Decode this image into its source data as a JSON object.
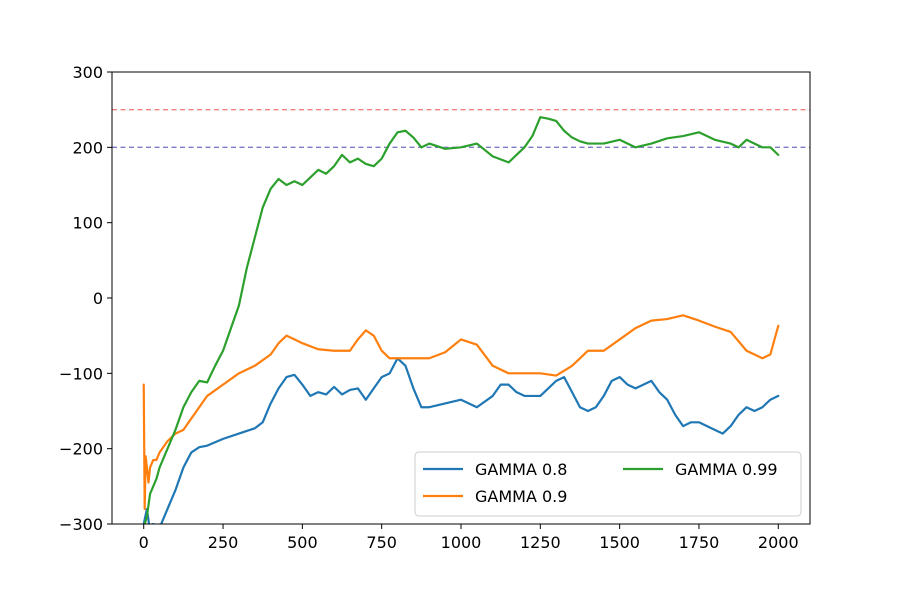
{
  "chart_data": {
    "type": "line",
    "title": "",
    "xlabel": "",
    "ylabel": "",
    "xlim": [
      -100,
      2100
    ],
    "ylim": [
      -300,
      300
    ],
    "xticks": [
      0,
      250,
      500,
      750,
      1000,
      1250,
      1500,
      1750,
      2000
    ],
    "xtick_labels": [
      "0",
      "250",
      "500",
      "750",
      "1000",
      "1250",
      "1500",
      "1750",
      "2000"
    ],
    "yticks": [
      -300,
      -200,
      -100,
      0,
      100,
      200,
      300
    ],
    "ytick_labels": [
      "−300",
      "−200",
      "−100",
      "0",
      "100",
      "200",
      "300"
    ],
    "grid": false,
    "legend_position": "lower-right",
    "legend_columns": 2,
    "hlines": [
      {
        "y": 250,
        "color": "#f08080",
        "style": "dashed"
      },
      {
        "y": 200,
        "color": "#7b7bc7",
        "style": "dashed"
      }
    ],
    "series": [
      {
        "name": "GAMMA 0.8",
        "color": "#1f77b4",
        "x": [
          0,
          10,
          20,
          30,
          40,
          50,
          75,
          100,
          125,
          150,
          175,
          200,
          250,
          300,
          350,
          375,
          400,
          425,
          450,
          475,
          500,
          525,
          550,
          575,
          600,
          625,
          650,
          675,
          700,
          725,
          750,
          775,
          800,
          825,
          850,
          875,
          900,
          950,
          1000,
          1050,
          1100,
          1125,
          1150,
          1175,
          1200,
          1250,
          1300,
          1325,
          1350,
          1375,
          1400,
          1425,
          1450,
          1475,
          1500,
          1525,
          1550,
          1575,
          1600,
          1625,
          1650,
          1675,
          1700,
          1725,
          1750,
          1800,
          1825,
          1850,
          1875,
          1900,
          1925,
          1950,
          1975,
          2000
        ],
        "y": [
          -300,
          -280,
          -310,
          -300,
          -310,
          -305,
          -280,
          -255,
          -225,
          -205,
          -198,
          -196,
          -187,
          -180,
          -173,
          -165,
          -140,
          -120,
          -105,
          -102,
          -115,
          -130,
          -125,
          -128,
          -118,
          -128,
          -122,
          -120,
          -135,
          -120,
          -105,
          -100,
          -80,
          -90,
          -120,
          -145,
          -145,
          -140,
          -135,
          -145,
          -130,
          -115,
          -115,
          -125,
          -130,
          -130,
          -110,
          -105,
          -125,
          -145,
          -150,
          -145,
          -130,
          -110,
          -105,
          -115,
          -120,
          -115,
          -110,
          -125,
          -135,
          -155,
          -170,
          -165,
          -165,
          -175,
          -180,
          -170,
          -155,
          -145,
          -150,
          -145,
          -135,
          -130
        ]
      },
      {
        "name": "GAMMA 0.9",
        "color": "#ff7f0e",
        "x": [
          0,
          3,
          6,
          10,
          15,
          20,
          30,
          40,
          50,
          75,
          100,
          125,
          150,
          175,
          200,
          250,
          300,
          350,
          400,
          425,
          450,
          475,
          500,
          550,
          600,
          650,
          675,
          700,
          725,
          750,
          775,
          800,
          850,
          900,
          950,
          1000,
          1050,
          1100,
          1150,
          1200,
          1250,
          1300,
          1350,
          1375,
          1400,
          1450,
          1500,
          1550,
          1600,
          1650,
          1700,
          1750,
          1800,
          1850,
          1900,
          1925,
          1950,
          1975,
          2000
        ],
        "y": [
          -115,
          -280,
          -210,
          -225,
          -245,
          -225,
          -215,
          -215,
          -205,
          -190,
          -180,
          -175,
          -160,
          -145,
          -130,
          -115,
          -100,
          -90,
          -75,
          -60,
          -50,
          -55,
          -60,
          -68,
          -70,
          -70,
          -55,
          -43,
          -50,
          -70,
          -80,
          -80,
          -80,
          -80,
          -72,
          -55,
          -62,
          -90,
          -100,
          -100,
          -100,
          -103,
          -90,
          -80,
          -70,
          -70,
          -55,
          -40,
          -30,
          -28,
          -23,
          -30,
          -38,
          -45,
          -70,
          -75,
          -80,
          -75,
          -37
        ]
      },
      {
        "name": "GAMMA 0.99",
        "color": "#2ca02c",
        "x": [
          0,
          10,
          20,
          30,
          40,
          50,
          75,
          100,
          125,
          150,
          175,
          200,
          225,
          250,
          275,
          300,
          325,
          350,
          375,
          400,
          425,
          450,
          475,
          500,
          525,
          550,
          575,
          600,
          625,
          650,
          675,
          700,
          725,
          750,
          775,
          800,
          825,
          850,
          875,
          900,
          950,
          1000,
          1050,
          1100,
          1150,
          1200,
          1225,
          1250,
          1275,
          1300,
          1325,
          1350,
          1375,
          1400,
          1450,
          1500,
          1550,
          1600,
          1650,
          1700,
          1750,
          1800,
          1850,
          1875,
          1900,
          1925,
          1950,
          1975,
          2000
        ],
        "y": [
          -305,
          -290,
          -260,
          -250,
          -240,
          -225,
          -200,
          -175,
          -145,
          -125,
          -110,
          -112,
          -90,
          -70,
          -40,
          -10,
          40,
          80,
          120,
          145,
          158,
          150,
          155,
          150,
          160,
          170,
          165,
          175,
          190,
          180,
          185,
          178,
          175,
          185,
          205,
          220,
          222,
          213,
          200,
          205,
          198,
          200,
          205,
          188,
          180,
          200,
          215,
          240,
          238,
          235,
          222,
          213,
          208,
          205,
          205,
          210,
          200,
          205,
          212,
          215,
          220,
          210,
          205,
          200,
          210,
          205,
          200,
          200,
          190
        ]
      }
    ]
  }
}
